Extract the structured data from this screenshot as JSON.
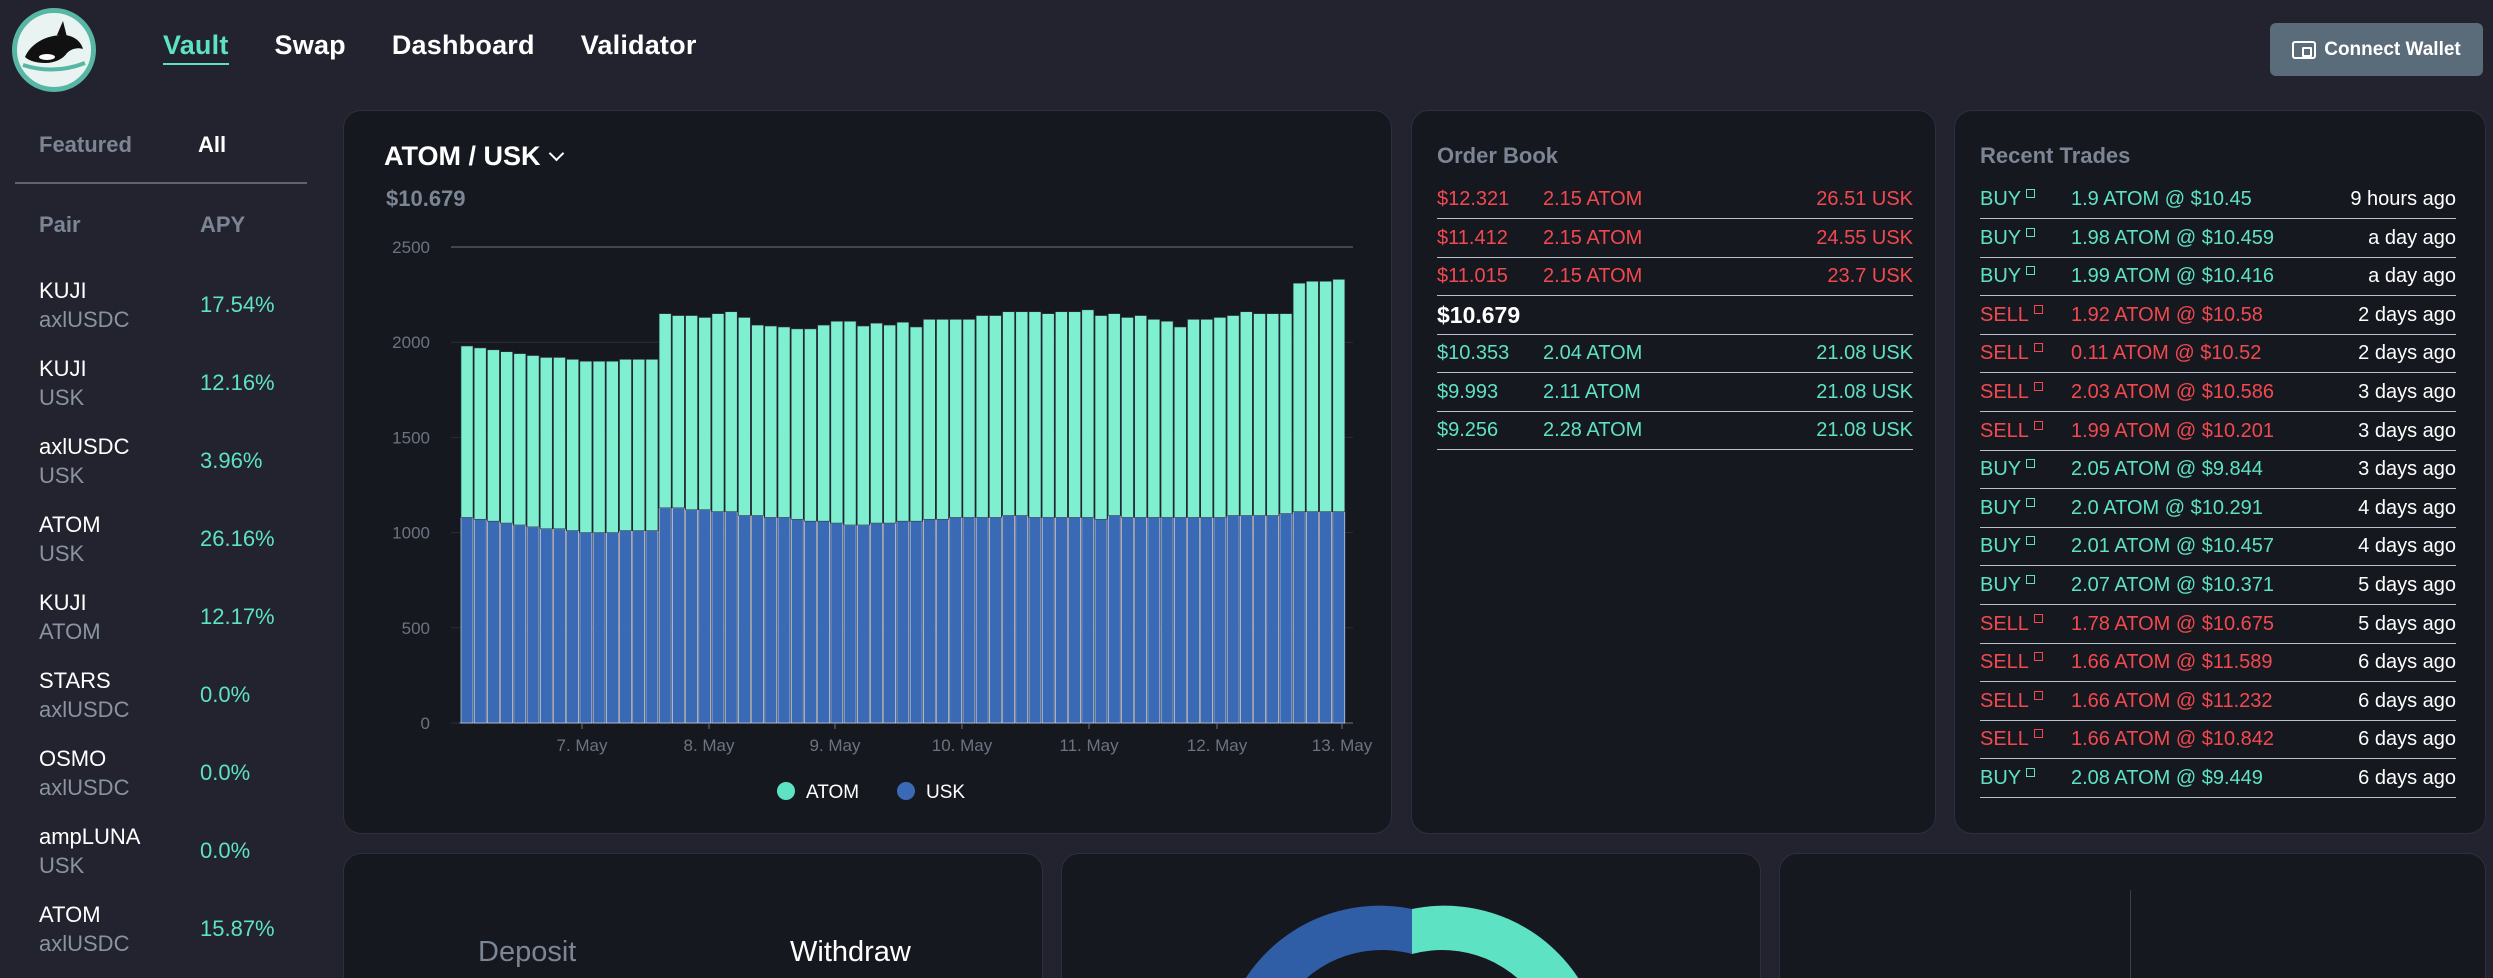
{
  "nav": {
    "items": [
      "Vault",
      "Swap",
      "Dashboard",
      "Validator"
    ],
    "active": "Vault",
    "connect_label": "Connect Wallet"
  },
  "sidebar": {
    "tabs": [
      "Featured",
      "All"
    ],
    "active_tab": "All",
    "headers": {
      "pair": "Pair",
      "apy": "APY"
    },
    "pairs": [
      {
        "base": "KUJI",
        "quote": "axlUSDC",
        "apy": "17.54%"
      },
      {
        "base": "KUJI",
        "quote": "USK",
        "apy": "12.16%"
      },
      {
        "base": "axlUSDC",
        "quote": "USK",
        "apy": "3.96%"
      },
      {
        "base": "ATOM",
        "quote": "USK",
        "apy": "26.16%"
      },
      {
        "base": "KUJI",
        "quote": "ATOM",
        "apy": "12.17%"
      },
      {
        "base": "STARS",
        "quote": "axlUSDC",
        "apy": "0.0%"
      },
      {
        "base": "OSMO",
        "quote": "axlUSDC",
        "apy": "0.0%"
      },
      {
        "base": "ampLUNA",
        "quote": "USK",
        "apy": "0.0%"
      },
      {
        "base": "ATOM",
        "quote": "axlUSDC",
        "apy": "15.87%"
      }
    ]
  },
  "main": {
    "pair_title": "ATOM / USK",
    "price": "$10.679"
  },
  "chart_data": {
    "type": "bar",
    "stacked": true,
    "x_tick_labels": [
      "7. May",
      "8. May",
      "9. May",
      "10. May",
      "11. May",
      "12. May",
      "13. May"
    ],
    "yticks": [
      0,
      500,
      1000,
      1500,
      2000,
      2500
    ],
    "ylim": [
      0,
      2500
    ],
    "series": [
      {
        "name": "ATOM",
        "color": "#7ef0d0",
        "values": [
          900,
          900,
          900,
          900,
          900,
          900,
          900,
          900,
          900,
          900,
          900,
          900,
          900,
          900,
          900,
          1020,
          1010,
          1020,
          1010,
          1040,
          1050,
          1040,
          1000,
          1005,
          1000,
          1000,
          1010,
          1030,
          1060,
          1070,
          1045,
          1050,
          1040,
          1045,
          1020,
          1050,
          1050,
          1040,
          1040,
          1060,
          1060,
          1070,
          1070,
          1080,
          1070,
          1080,
          1080,
          1090,
          1070,
          1060,
          1050,
          1060,
          1040,
          1030,
          1000,
          1040,
          1040,
          1050,
          1050,
          1070,
          1060,
          1060,
          1050,
          1200,
          1210,
          1210,
          1220
        ]
      },
      {
        "name": "USK",
        "color": "#3a6ab6",
        "values": [
          1080,
          1070,
          1060,
          1050,
          1040,
          1030,
          1020,
          1020,
          1010,
          1000,
          1000,
          1000,
          1010,
          1010,
          1010,
          1130,
          1130,
          1120,
          1120,
          1110,
          1110,
          1090,
          1090,
          1080,
          1080,
          1070,
          1060,
          1060,
          1050,
          1040,
          1040,
          1050,
          1050,
          1060,
          1060,
          1070,
          1070,
          1080,
          1080,
          1080,
          1080,
          1090,
          1090,
          1080,
          1080,
          1080,
          1080,
          1080,
          1070,
          1090,
          1080,
          1080,
          1080,
          1080,
          1080,
          1080,
          1080,
          1080,
          1090,
          1090,
          1090,
          1090,
          1100,
          1110,
          1110,
          1110,
          1110
        ]
      }
    ],
    "legend": [
      "ATOM",
      "USK"
    ],
    "legend_position": "bottom-center"
  },
  "order_book": {
    "title": "Order Book",
    "asks": [
      {
        "price": "$12.321",
        "qty": "2.15 ATOM",
        "total": "26.51 USK"
      },
      {
        "price": "$11.412",
        "qty": "2.15 ATOM",
        "total": "24.55 USK"
      },
      {
        "price": "$11.015",
        "qty": "2.15 ATOM",
        "total": "23.7 USK"
      }
    ],
    "mid": "$10.679",
    "bids": [
      {
        "price": "$10.353",
        "qty": "2.04 ATOM",
        "total": "21.08 USK"
      },
      {
        "price": "$9.993",
        "qty": "2.11 ATOM",
        "total": "21.08 USK"
      },
      {
        "price": "$9.256",
        "qty": "2.28 ATOM",
        "total": "21.08 USK"
      }
    ]
  },
  "recent_trades": {
    "title": "Recent Trades",
    "rows": [
      {
        "side": "BUY",
        "detail": "1.9 ATOM @ $10.45",
        "time": "9 hours ago"
      },
      {
        "side": "BUY",
        "detail": "1.98 ATOM @ $10.459",
        "time": "a day ago"
      },
      {
        "side": "BUY",
        "detail": "1.99 ATOM @ $10.416",
        "time": "a day ago"
      },
      {
        "side": "SELL",
        "detail": "1.92 ATOM @ $10.58",
        "time": "2 days ago"
      },
      {
        "side": "SELL",
        "detail": "0.11 ATOM @ $10.52",
        "time": "2 days ago"
      },
      {
        "side": "SELL",
        "detail": "2.03 ATOM @ $10.586",
        "time": "3 days ago"
      },
      {
        "side": "SELL",
        "detail": "1.99 ATOM @ $10.201",
        "time": "3 days ago"
      },
      {
        "side": "BUY",
        "detail": "2.05 ATOM @ $9.844",
        "time": "3 days ago"
      },
      {
        "side": "BUY",
        "detail": "2.0 ATOM @ $10.291",
        "time": "4 days ago"
      },
      {
        "side": "BUY",
        "detail": "2.01 ATOM @ $10.457",
        "time": "4 days ago"
      },
      {
        "side": "BUY",
        "detail": "2.07 ATOM @ $10.371",
        "time": "5 days ago"
      },
      {
        "side": "SELL",
        "detail": "1.78 ATOM @ $10.675",
        "time": "5 days ago"
      },
      {
        "side": "SELL",
        "detail": "1.66 ATOM @ $11.589",
        "time": "6 days ago"
      },
      {
        "side": "SELL",
        "detail": "1.66 ATOM @ $11.232",
        "time": "6 days ago"
      },
      {
        "side": "SELL",
        "detail": "1.66 ATOM @ $10.842",
        "time": "6 days ago"
      },
      {
        "side": "BUY",
        "detail": "2.08 ATOM @ $9.449",
        "time": "6 days ago"
      }
    ]
  },
  "deposit": {
    "tabs": [
      "Deposit",
      "Withdraw"
    ],
    "active_tab": "Withdraw"
  },
  "colors": {
    "accent": "#5ee2c4",
    "sell": "#f2494f",
    "usk": "#3a6ab6",
    "atom": "#7ef0d0"
  }
}
